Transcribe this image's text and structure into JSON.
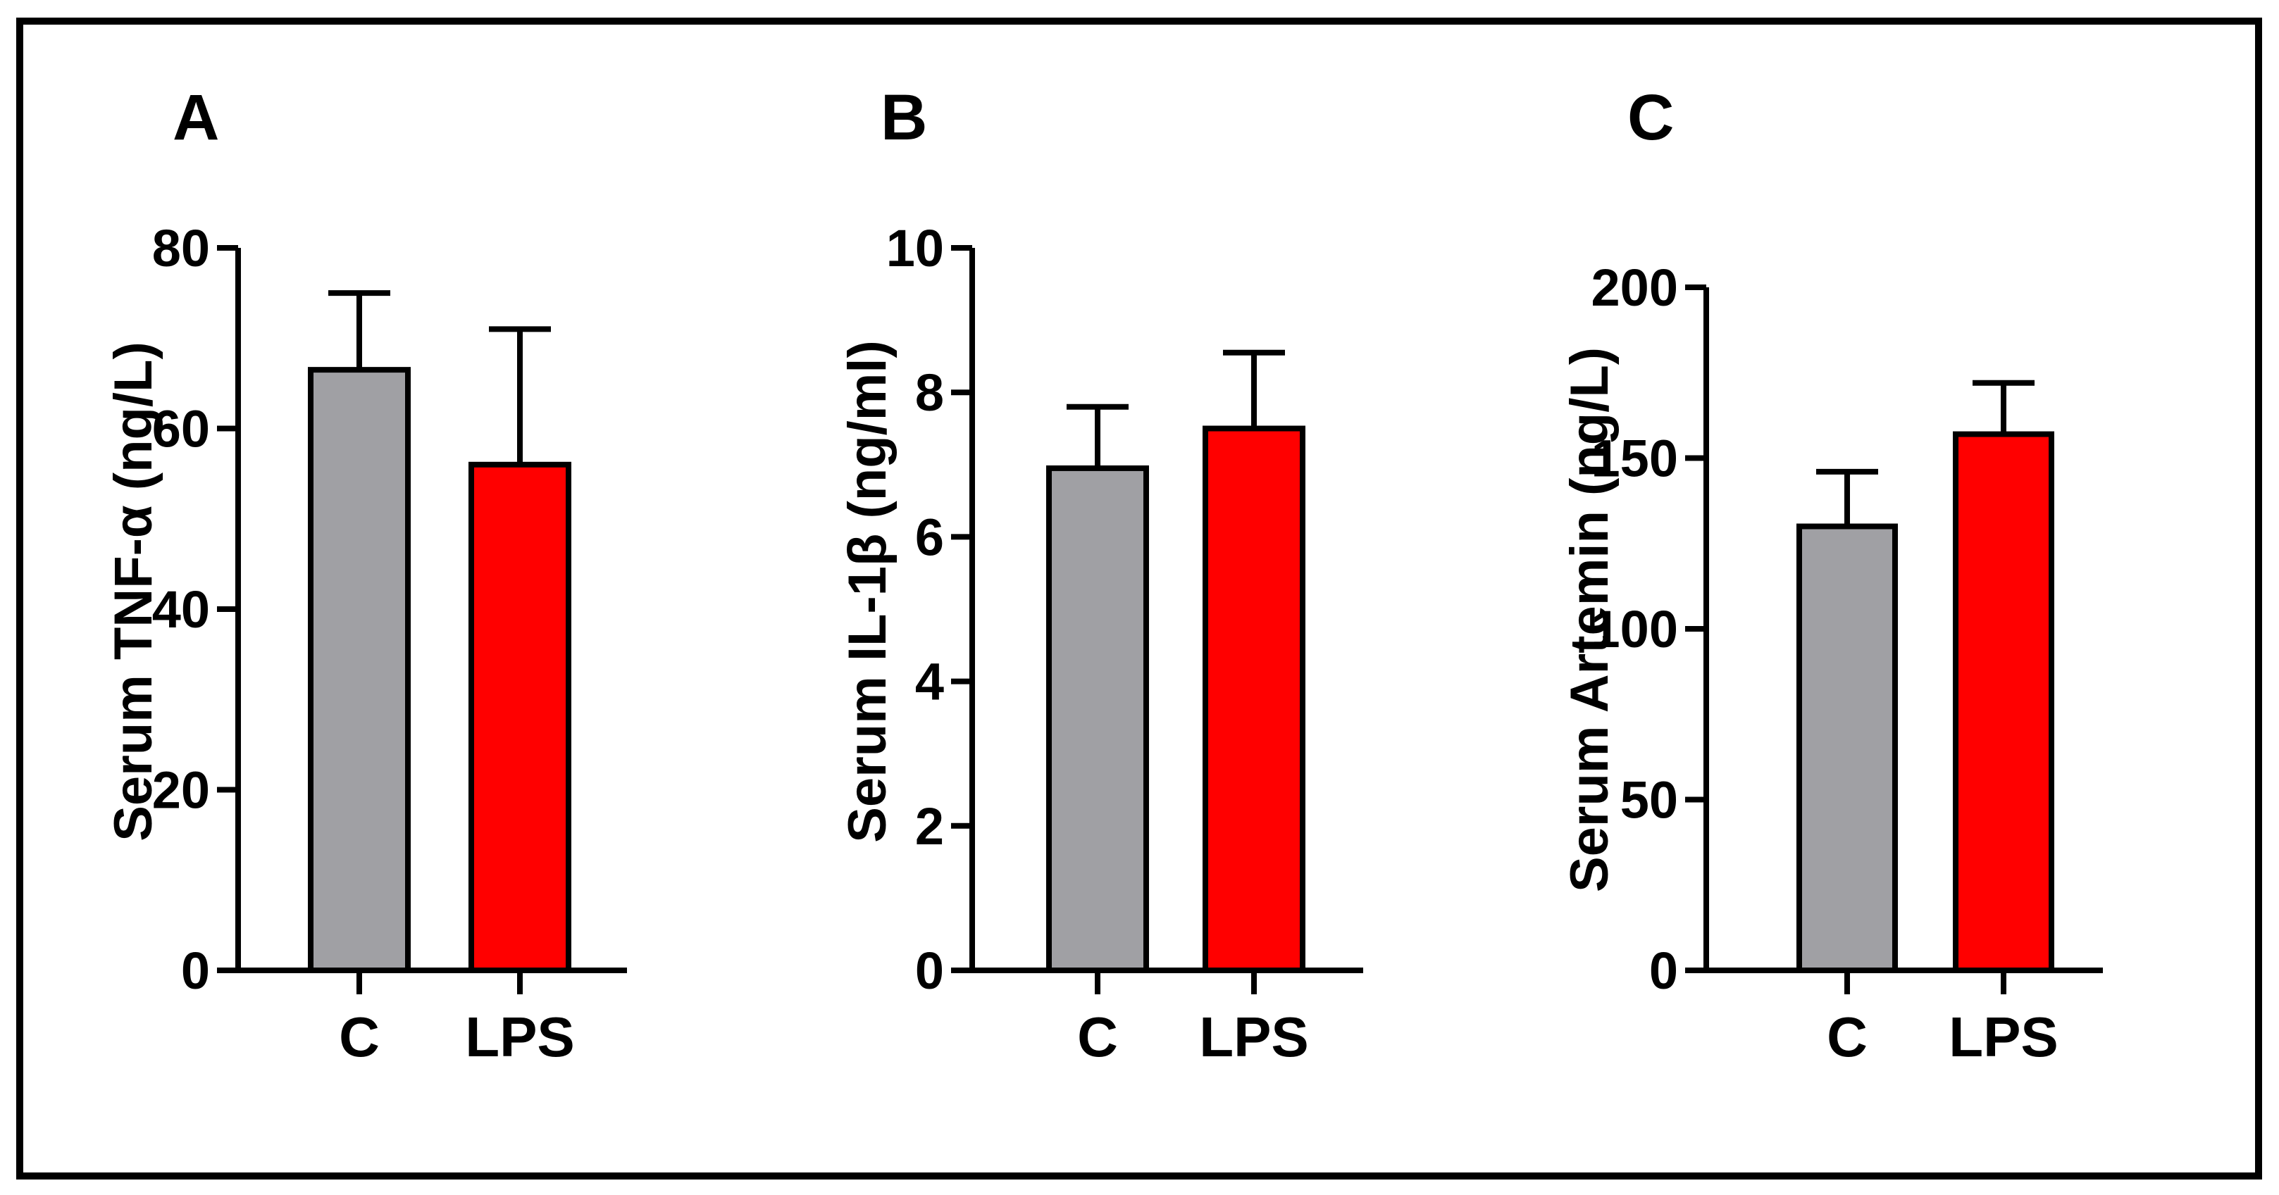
{
  "chart_data": [
    {
      "type": "bar",
      "panel": "A",
      "title": "",
      "ylabel": "Serum TNF-α (ng/L)",
      "xlabel": "",
      "categories": [
        "C",
        "LPS"
      ],
      "values": [
        66.5,
        56
      ],
      "errors": [
        8.5,
        15
      ],
      "colors": [
        "#A0A0A4",
        "#FF0000"
      ],
      "ylim": [
        0,
        80
      ],
      "yticks": [
        0,
        20,
        40,
        60,
        80
      ]
    },
    {
      "type": "bar",
      "panel": "B",
      "title": "",
      "ylabel": "Serum IL-1β (ng/ml)",
      "xlabel": "",
      "categories": [
        "C",
        "LPS"
      ],
      "values": [
        6.95,
        7.5
      ],
      "errors": [
        0.85,
        1.05
      ],
      "colors": [
        "#A0A0A4",
        "#FF0000"
      ],
      "ylim": [
        0,
        10
      ],
      "yticks": [
        0,
        2,
        4,
        6,
        8,
        10
      ]
    },
    {
      "type": "bar",
      "panel": "C",
      "title": "",
      "ylabel": "Serum Artemin (ng/L)",
      "xlabel": "",
      "categories": [
        "C",
        "LPS"
      ],
      "values": [
        130,
        157
      ],
      "errors": [
        16,
        15
      ],
      "colors": [
        "#A0A0A4",
        "#FF0000"
      ],
      "ylim": [
        0,
        200
      ],
      "yticks": [
        0,
        50,
        100,
        150,
        200
      ]
    }
  ]
}
